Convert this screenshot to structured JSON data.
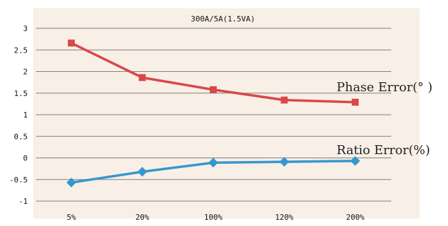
{
  "chart_data": {
    "type": "line",
    "title": "300A/5A(1.5VA)",
    "categories": [
      "5%",
      "20%",
      "100%",
      "120%",
      "200%"
    ],
    "ylim": [
      -1,
      3
    ],
    "yticks": [
      3,
      2.5,
      2,
      1.5,
      1,
      0.5,
      0,
      -0.5,
      -1
    ],
    "grid": true,
    "background": "#f8efe6",
    "series": [
      {
        "name": "Phase Error(° )",
        "marker": "square",
        "color": "#d9474a",
        "values": [
          2.66,
          1.86,
          1.58,
          1.34,
          1.29
        ]
      },
      {
        "name": "Ratio Error(%)",
        "marker": "diamond",
        "color": "#3498cf",
        "values": [
          -0.57,
          -0.32,
          -0.11,
          -0.09,
          -0.07
        ]
      }
    ]
  }
}
